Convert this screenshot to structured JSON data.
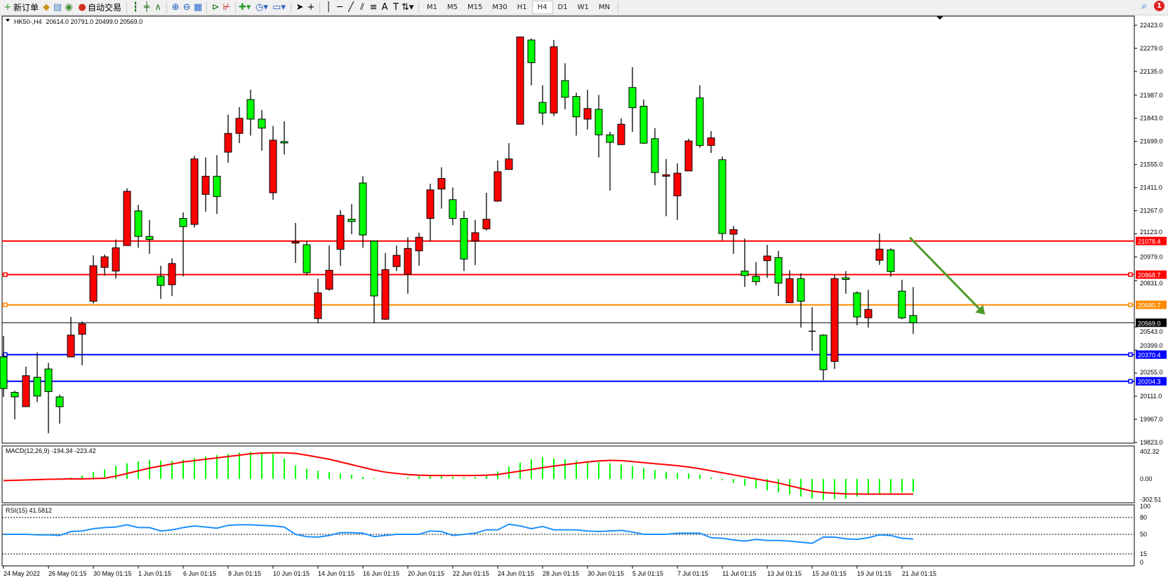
{
  "toolbar": {
    "new_order_label": "新订单",
    "auto_trading_label": "自动交易",
    "timeframes": [
      "M1",
      "M5",
      "M15",
      "M30",
      "H1",
      "H4",
      "D1",
      "W1",
      "MN"
    ],
    "active_timeframe": "H4",
    "notification_count": "1",
    "icons": [
      "new-order-icon",
      "gold-icon",
      "market-watch-icon",
      "signal-icon",
      "auto-trading-icon",
      "bar-chart-icon",
      "candlestick-icon",
      "line-chart-icon",
      "zoom-in-icon",
      "zoom-out-icon",
      "tile-windows-icon",
      "auto-scroll-icon",
      "chart-shift-icon",
      "indicators-icon",
      "periods-icon",
      "templates-icon",
      "cursor-icon",
      "crosshair-icon",
      "vertical-line-icon",
      "horizontal-line-icon",
      "trendline-icon",
      "equidistant-channel-icon",
      "fibonacci-icon",
      "text-icon",
      "text-label-icon",
      "arrows-icon",
      "search-icon",
      "notification-icon"
    ]
  },
  "chart_header": {
    "symbol_label": "HK50-,H4",
    "ohlc_label": "20614.0 20791.0 20499.0 20569.0"
  },
  "colors": {
    "bull_candle": "#ff0000",
    "bear_candle": "#00ff00",
    "resistance": "#ff0000",
    "pivot": "#ff8c00",
    "support": "#0000ff",
    "arrow": "#4e9a2a",
    "rsi": "#1e90ff",
    "macd_hist": "#00ff00",
    "macd_signal": "#ff0000"
  },
  "chart_data": {
    "type": "candlestick",
    "symbol": "HK50-",
    "timeframe": "H4",
    "ylim": [
      19818,
      22450
    ],
    "y_tick_labels": [
      "22423.0",
      "22279.0",
      "22135.0",
      "21987.0",
      "21843.0",
      "21699.0",
      "21555.0",
      "21411.0",
      "21267.0",
      "21123.0",
      "20979.0",
      "20831.0",
      "20543.0",
      "20399.0",
      "20255.0",
      "20111.0",
      "19967.0",
      "19823.0"
    ],
    "x_tick_labels": [
      "24 May 2022",
      "26 May 01:15",
      "30 May 01:15",
      "1 Jun 01:15",
      "6 Jun 01:15",
      "8 Jun 01:15",
      "10 Jun 01:15",
      "14 Jun 01:15",
      "16 Jun 01:15",
      "20 Jun 01:15",
      "22 Jun 01:15",
      "24 Jun 01:15",
      "28 Jun 01:15",
      "30 Jun 01:15",
      "5 Jul 01:15",
      "7 Jul 01:15",
      "11 Jul 01:15",
      "13 Jul 01:15",
      "15 Jul 01:15",
      "19 Jul 01:15",
      "21 Jul 01:15"
    ],
    "ohlc": [
      [
        20356,
        20487,
        20107,
        20159
      ],
      [
        20135,
        20145,
        19967,
        20107
      ],
      [
        20046,
        20295,
        20046,
        20239
      ],
      [
        20229,
        20384,
        20075,
        20112
      ],
      [
        20281,
        20319,
        19880,
        20140
      ],
      [
        20107,
        20121,
        19940,
        20046
      ],
      [
        20356,
        20605,
        20356,
        20492
      ],
      [
        20497,
        20577,
        20304,
        20562
      ],
      [
        20703,
        20989,
        20689,
        20924
      ],
      [
        20914,
        20994,
        20863,
        20980
      ],
      [
        20891,
        21088,
        20844,
        21036
      ],
      [
        21050,
        21407,
        21050,
        21388
      ],
      [
        21266,
        21304,
        21036,
        21107
      ],
      [
        21107,
        21210,
        20999,
        21088
      ],
      [
        20858,
        20924,
        20717,
        20802
      ],
      [
        20806,
        20971,
        20736,
        20938
      ],
      [
        21219,
        21257,
        20858,
        21168
      ],
      [
        21182,
        21609,
        21163,
        21590
      ],
      [
        21369,
        21599,
        21261,
        21482
      ],
      [
        21482,
        21613,
        21247,
        21355
      ],
      [
        21632,
        21866,
        21566,
        21749
      ],
      [
        21749,
        21913,
        21688,
        21843
      ],
      [
        21960,
        22021,
        21735,
        21838
      ],
      [
        21838,
        21895,
        21641,
        21782
      ],
      [
        21379,
        21796,
        21336,
        21707
      ],
      [
        21698,
        21824,
        21618,
        21693
      ],
      [
        21069,
        21191,
        20942,
        21074
      ],
      [
        21055,
        21078,
        20863,
        20881
      ],
      [
        20595,
        20844,
        20567,
        20755
      ],
      [
        20778,
        21050,
        20769,
        20896
      ],
      [
        21027,
        21271,
        20924,
        21238
      ],
      [
        21214,
        21308,
        21121,
        21200
      ],
      [
        21440,
        21482,
        21036,
        21116
      ],
      [
        21078,
        21078,
        20567,
        20736
      ],
      [
        20591,
        21003,
        20586,
        20900
      ],
      [
        20919,
        21050,
        20891,
        20989
      ],
      [
        20872,
        21102,
        20750,
        21032
      ],
      [
        21017,
        21130,
        20924,
        21102
      ],
      [
        21219,
        21435,
        21078,
        21397
      ],
      [
        21402,
        21538,
        21280,
        21468
      ],
      [
        21336,
        21412,
        21177,
        21219
      ],
      [
        21219,
        21266,
        20891,
        20966
      ],
      [
        21078,
        21210,
        20928,
        21130
      ],
      [
        21154,
        21379,
        21144,
        21214
      ],
      [
        21327,
        21580,
        21322,
        21510
      ],
      [
        21524,
        21688,
        21524,
        21590
      ],
      [
        21806,
        22350,
        21806,
        22350
      ],
      [
        22331,
        22340,
        22049,
        22190
      ],
      [
        21942,
        22049,
        21801,
        21876
      ],
      [
        21876,
        22331,
        21857,
        22289
      ],
      [
        22078,
        22186,
        21899,
        21974
      ],
      [
        21979,
        22003,
        21735,
        21852
      ],
      [
        21838,
        22021,
        21773,
        21904
      ],
      [
        21899,
        21989,
        21599,
        21740
      ],
      [
        21740,
        21759,
        21393,
        21693
      ],
      [
        21679,
        21843,
        21679,
        21806
      ],
      [
        22035,
        22162,
        21759,
        21909
      ],
      [
        21918,
        21960,
        21684,
        21688
      ],
      [
        21716,
        21782,
        21426,
        21505
      ],
      [
        21482,
        21590,
        21233,
        21491
      ],
      [
        21360,
        21562,
        21210,
        21501
      ],
      [
        21515,
        21716,
        21515,
        21702
      ],
      [
        21970,
        22049,
        21660,
        21674
      ],
      [
        21674,
        21763,
        21627,
        21721
      ],
      [
        21585,
        21604,
        21083,
        21125
      ],
      [
        21121,
        21172,
        20999,
        21149
      ],
      [
        20891,
        21093,
        20792,
        20863
      ],
      [
        20858,
        20947,
        20802,
        20825
      ],
      [
        20956,
        21055,
        20849,
        20985
      ],
      [
        20975,
        21017,
        20736,
        20816
      ],
      [
        20694,
        20896,
        20694,
        20844
      ],
      [
        20844,
        20877,
        20539,
        20703
      ],
      [
        20516,
        20666,
        20394,
        20516
      ],
      [
        20492,
        20497,
        20211,
        20276
      ],
      [
        20328,
        20867,
        20281,
        20844
      ],
      [
        20849,
        20891,
        20750,
        20839
      ],
      [
        20755,
        20764,
        20553,
        20605
      ],
      [
        20600,
        20774,
        20539,
        20652
      ],
      [
        20958,
        21125,
        20930,
        21028
      ],
      [
        21023,
        21033,
        20856,
        20888
      ],
      [
        20766,
        20837,
        20591,
        20599
      ],
      [
        20614,
        20791,
        20499,
        20569
      ]
    ],
    "horizontal_lines": [
      {
        "price": 21078.4,
        "label": "21078.4",
        "color": "#ff0000",
        "handles": false
      },
      {
        "price": 20868.7,
        "label": "20868.7",
        "color": "#ff0000",
        "handles": true
      },
      {
        "price": 20680.7,
        "label": "20680.7",
        "color": "#ff8c00",
        "handles": true
      },
      {
        "price": 20370.4,
        "label": "20370.4",
        "color": "#0000ff",
        "handles": true
      },
      {
        "price": 20204.3,
        "label": "20204.3",
        "color": "#0000ff",
        "handles": true
      }
    ],
    "current_price": {
      "price": 20569.0,
      "label": "20569.0"
    },
    "arrow": {
      "from": {
        "candle_index": 80.7,
        "price": 21100
      },
      "to": {
        "candle_index": 87.4,
        "price": 20620
      }
    },
    "indicators": [
      {
        "type": "bar+line",
        "label": "MACD(12,26,9) -194.34 -223.42",
        "y_tick_labels": [
          "402.32",
          "0.00",
          "-302.51"
        ],
        "ylim": [
          -310,
          430
        ],
        "main": [
          5,
          5,
          3,
          0,
          -8,
          -5,
          20,
          50,
          100,
          140,
          190,
          230,
          260,
          280,
          270,
          265,
          280,
          310,
          330,
          350,
          370,
          390,
          400,
          395,
          370,
          300,
          200,
          150,
          120,
          100,
          80,
          60,
          30,
          10,
          5,
          5,
          20,
          40,
          50,
          45,
          30,
          20,
          25,
          50,
          110,
          180,
          240,
          290,
          320,
          300,
          290,
          270,
          255,
          245,
          230,
          210,
          190,
          160,
          130,
          105,
          90,
          80,
          60,
          20,
          -20,
          -60,
          -100,
          -140,
          -170,
          -200,
          -230,
          -260,
          -290,
          -310,
          -300,
          -290,
          -260,
          -230,
          -215,
          -205,
          -200,
          -194.34
        ],
        "signal": [
          -25,
          -20,
          -15,
          -10,
          -5,
          -3,
          0,
          0,
          5,
          10,
          40,
          80,
          120,
          160,
          190,
          220,
          250,
          270,
          290,
          310,
          330,
          350,
          370,
          380,
          385,
          385,
          375,
          350,
          320,
          290,
          250,
          210,
          170,
          130,
          100,
          80,
          65,
          55,
          50,
          50,
          50,
          50,
          50,
          55,
          65,
          90,
          115,
          140,
          165,
          190,
          210,
          230,
          250,
          265,
          273,
          270,
          255,
          240,
          225,
          210,
          195,
          175,
          150,
          120,
          90,
          60,
          30,
          0,
          -30,
          -60,
          -100,
          -140,
          -180,
          -200,
          -210,
          -220,
          -222,
          -223,
          -223,
          -223,
          -223,
          -223.42
        ]
      },
      {
        "type": "line",
        "label": "RSI(15) 41.5812",
        "y_tick_labels": [
          "100",
          "80",
          "50",
          "15",
          "0"
        ],
        "levels": [
          80,
          50,
          15
        ],
        "ylim": [
          0,
          100
        ],
        "values": [
          50,
          50,
          50,
          49,
          49,
          48,
          55,
          56,
          60,
          62,
          63,
          67,
          62,
          62,
          56,
          58,
          62,
          65,
          63,
          61,
          66,
          67,
          67,
          66,
          65,
          63,
          50,
          46,
          45,
          48,
          53,
          53,
          52,
          46,
          48,
          50,
          50,
          50,
          56,
          55,
          48,
          50,
          52,
          58,
          58,
          68,
          65,
          60,
          64,
          58,
          58,
          58,
          56,
          55,
          56,
          57,
          54,
          50,
          50,
          50,
          52,
          52,
          52,
          44,
          43,
          40,
          38,
          41,
          39,
          39,
          38,
          36,
          34,
          45,
          45,
          42,
          41,
          44,
          49,
          48,
          43,
          41.58
        ]
      }
    ]
  }
}
